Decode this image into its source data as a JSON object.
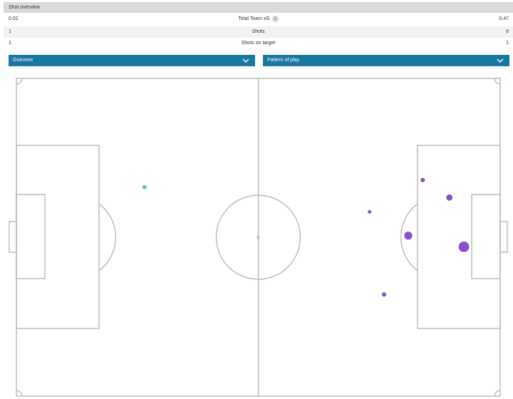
{
  "overview": {
    "title": "Shot overview"
  },
  "stats": [
    {
      "label": "Total Team xG",
      "left": "0.02",
      "right": "0.47",
      "has_info": true
    },
    {
      "label": "Shots",
      "left": "1",
      "right": "6",
      "has_info": false
    },
    {
      "label": "Shots on target",
      "left": "1",
      "right": "1",
      "has_info": false
    }
  ],
  "filters": {
    "outcome": {
      "label": "Outcome"
    },
    "pattern": {
      "label": "Pattern of play"
    }
  },
  "info_icon_glyph": "i",
  "colors": {
    "header_bg": "#d9d9d9",
    "dropdown_bg": "#1878a3",
    "pitch_lines": "#bdbdbd",
    "home_shot": "#5bc8c0",
    "away_shot": "#8a4fd1"
  },
  "shots": {
    "home": [
      {
        "x": 26.5,
        "y": 34.2,
        "xg": 0.02
      }
    ],
    "away": [
      {
        "x": 73.0,
        "y": 42.0,
        "xg": 0.01
      },
      {
        "x": 84.0,
        "y": 32.0,
        "xg": 0.02
      },
      {
        "x": 89.5,
        "y": 37.5,
        "xg": 0.06
      },
      {
        "x": 81.0,
        "y": 49.5,
        "xg": 0.12
      },
      {
        "x": 92.5,
        "y": 53.0,
        "xg": 0.24
      },
      {
        "x": 76.0,
        "y": 68.0,
        "xg": 0.02
      }
    ]
  }
}
